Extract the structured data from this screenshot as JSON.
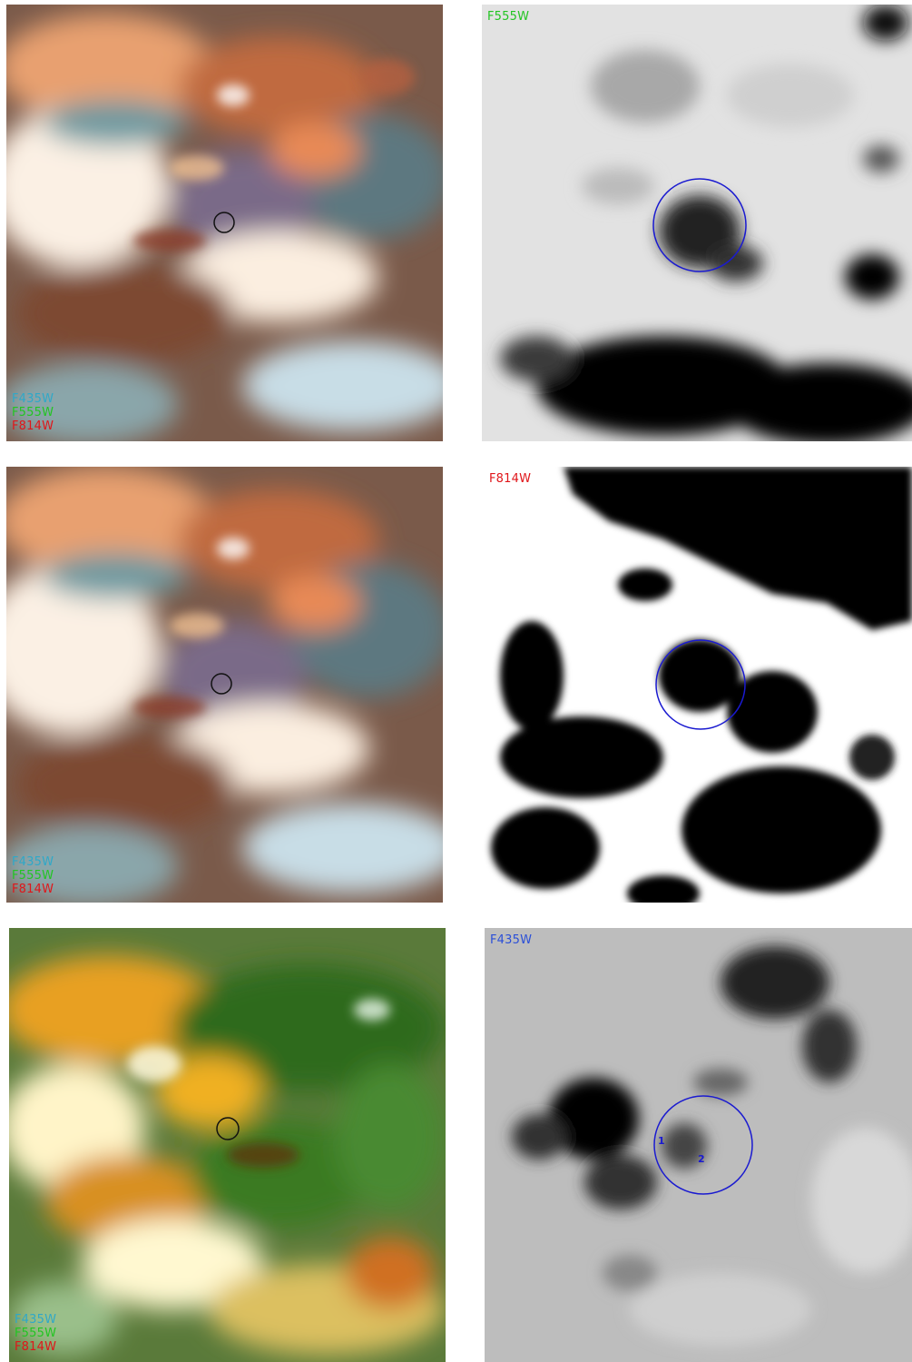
{
  "colors": {
    "f435w": "#2fa8c8",
    "f555w": "#22c522",
    "f814w": "#e0161a",
    "f435w_title": "#2b4fd8",
    "circle_dark": "#111111",
    "circle_blue": "#1a1ad0"
  },
  "panels": [
    {
      "kind": "rgb-composite",
      "legend": [
        "F435W",
        "F555W",
        "F814W"
      ]
    },
    {
      "kind": "single-band",
      "filter": "F555W"
    },
    {
      "kind": "rgb-composite",
      "legend": [
        "F435W",
        "F555W",
        "F814W"
      ]
    },
    {
      "kind": "single-band",
      "filter": "F814W"
    },
    {
      "kind": "rgb-composite",
      "legend": [
        "F435W",
        "F555W",
        "F814W"
      ]
    },
    {
      "kind": "single-band",
      "filter": "F435W",
      "source_labels": [
        "1",
        "2"
      ]
    }
  ]
}
